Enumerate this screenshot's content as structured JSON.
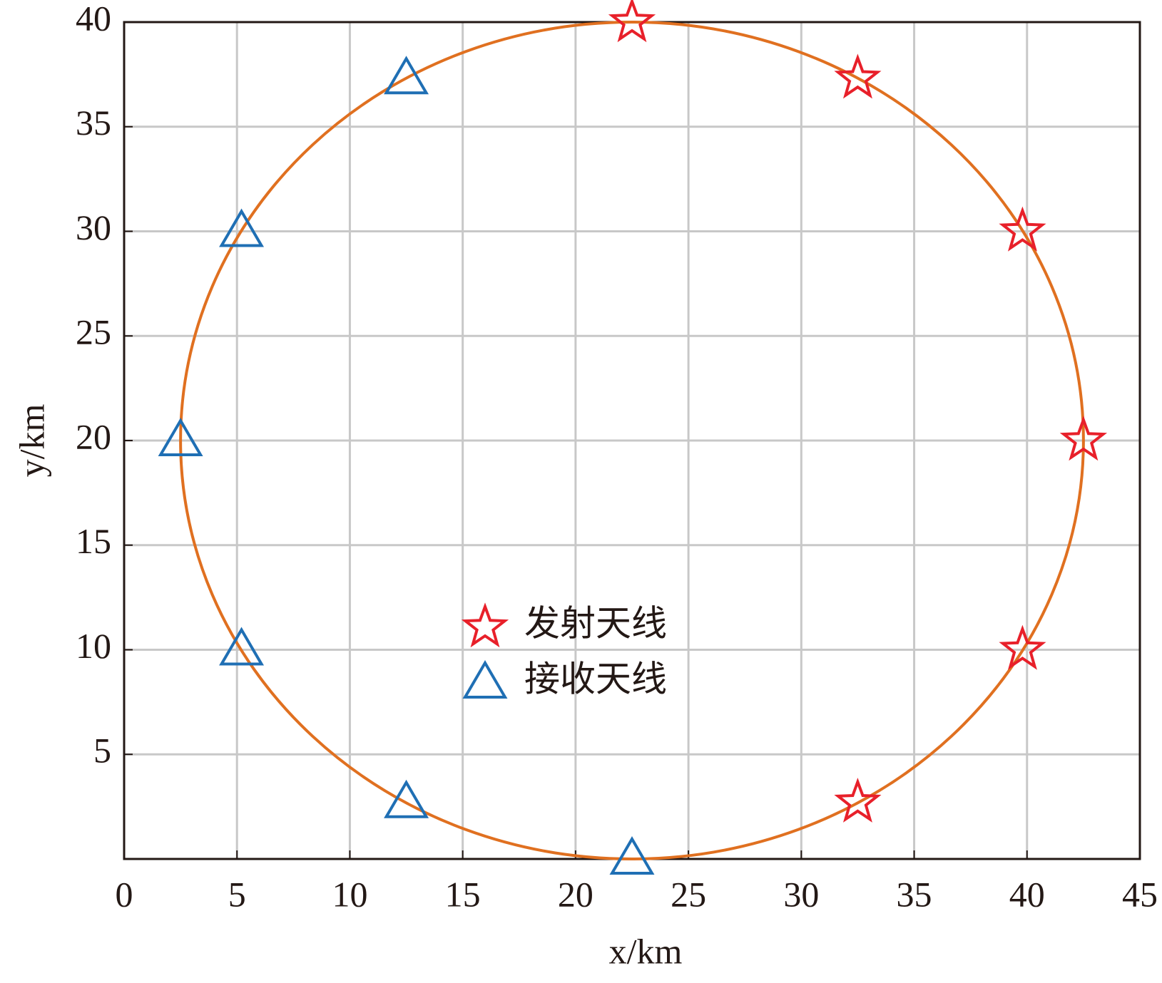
{
  "chart_data": {
    "type": "scatter",
    "xlabel": "x/km",
    "ylabel": "y/km",
    "xlim": [
      0,
      45
    ],
    "ylim": [
      0,
      40
    ],
    "xticks": [
      0,
      5,
      10,
      15,
      20,
      25,
      30,
      35,
      40,
      45
    ],
    "yticks": [
      5,
      10,
      15,
      20,
      25,
      30,
      35,
      40
    ],
    "grid": true,
    "legend": "center",
    "circle": {
      "center": [
        22.5,
        20
      ],
      "radius": 20,
      "color": "#e07020"
    },
    "series": [
      {
        "name": "发射天线",
        "marker": "star",
        "color": "#e8202a",
        "x": [
          22.5,
          32.5,
          39.8,
          42.5,
          39.8,
          32.5
        ],
        "values": [
          40,
          37.3,
          30,
          20,
          10,
          2.7
        ]
      },
      {
        "name": "接收天线",
        "marker": "triangle",
        "color": "#1f6fb4",
        "x": [
          12.5,
          5.2,
          2.5,
          5.2,
          12.5,
          22.5
        ],
        "values": [
          37.3,
          30,
          20,
          10,
          2.7,
          0
        ]
      }
    ]
  }
}
